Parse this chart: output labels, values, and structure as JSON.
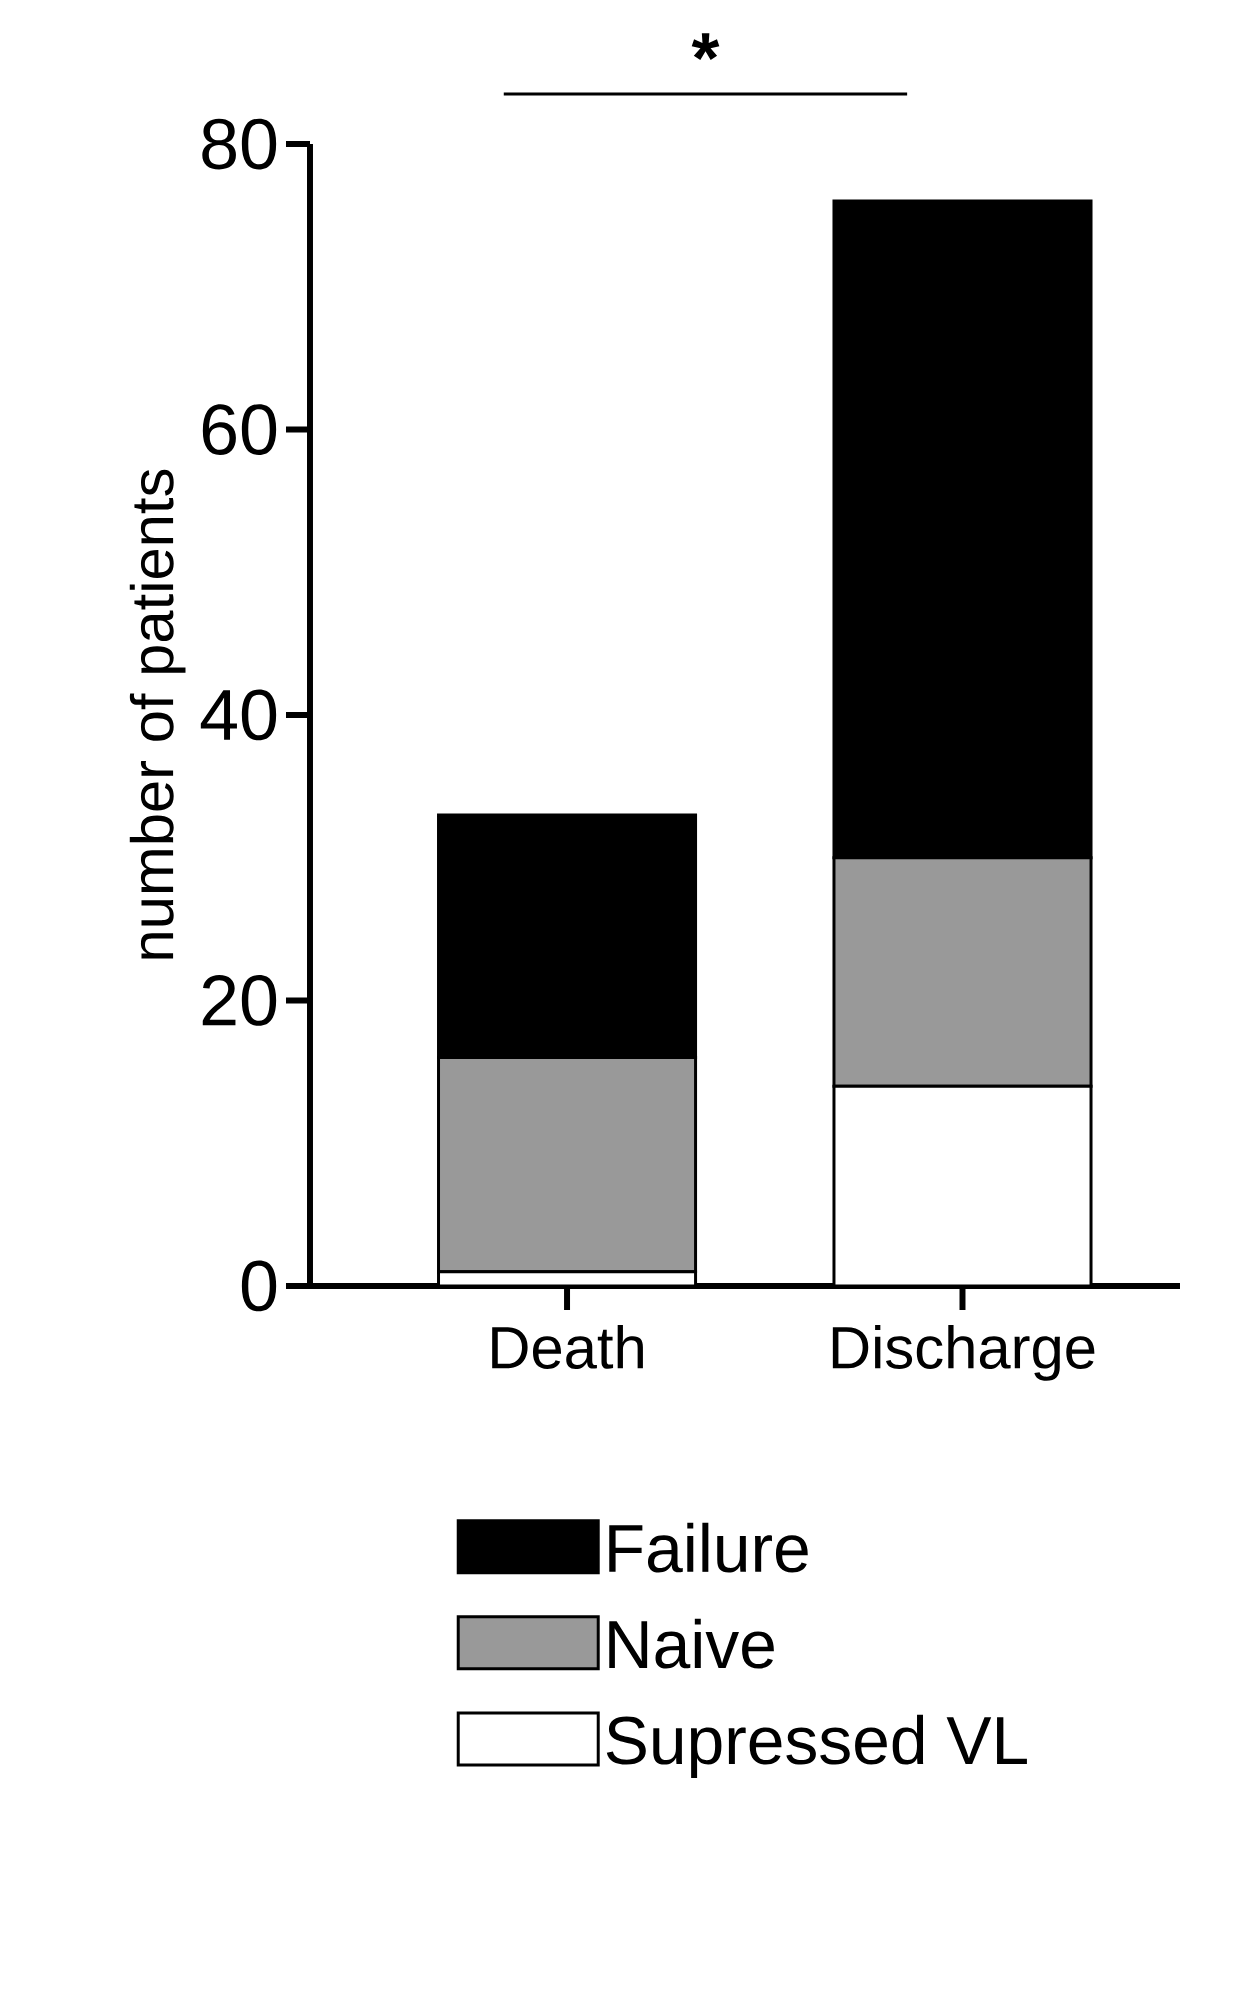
{
  "chart_data": {
    "type": "bar",
    "stacked": true,
    "ylabel": "number of patients",
    "categories": [
      "Death",
      "Discharge"
    ],
    "series": [
      {
        "name": "Supressed VL",
        "color": "#ffffff",
        "values": [
          1,
          14
        ]
      },
      {
        "name": "Naive",
        "color": "#999999",
        "values": [
          15,
          16
        ]
      },
      {
        "name": "Failure",
        "color": "#000000",
        "values": [
          17,
          46
        ]
      }
    ],
    "ylim": [
      0,
      80
    ],
    "yticks": [
      0,
      20,
      40,
      60,
      80
    ],
    "legend": "bottom",
    "grid": false,
    "annotations": [
      "*"
    ]
  }
}
